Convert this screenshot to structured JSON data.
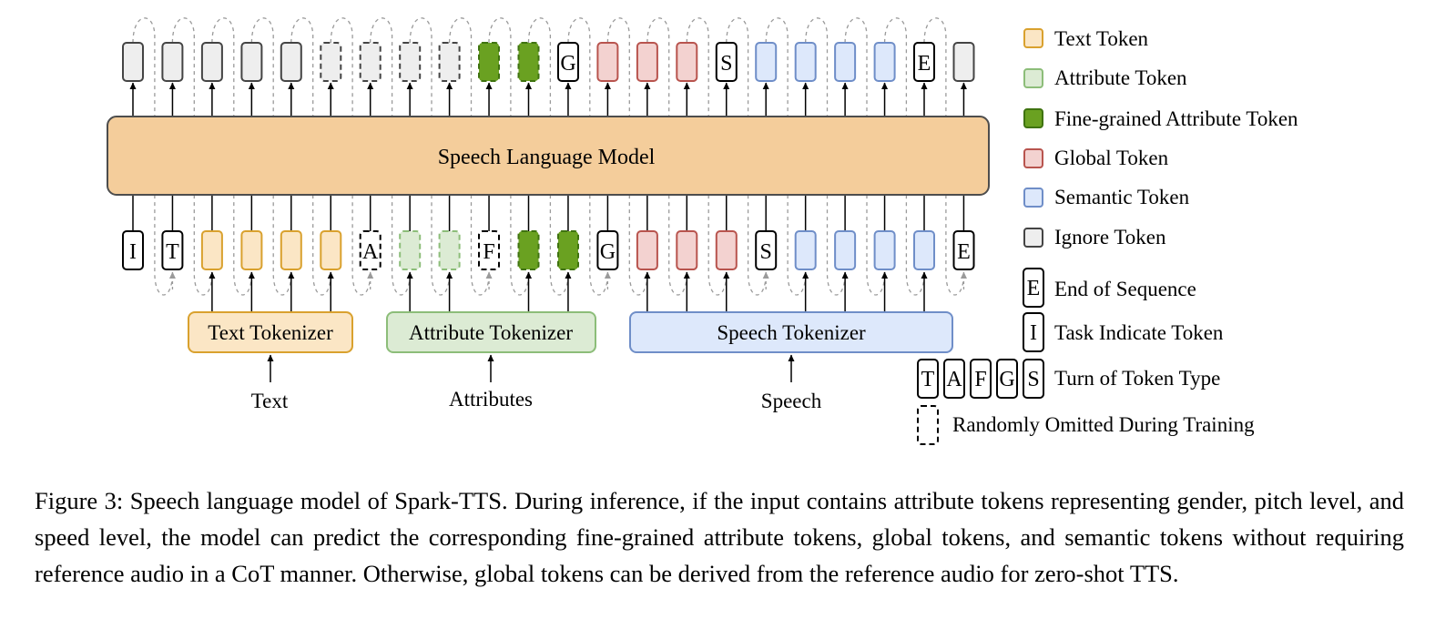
{
  "model": {
    "label": "Speech Language Model"
  },
  "tokenizers": {
    "text": "Text Tokenizer",
    "attribute": "Attribute Tokenizer",
    "speech": "Speech Tokenizer"
  },
  "inputs": {
    "text": "Text",
    "attributes": "Attributes",
    "speech": "Speech"
  },
  "token_letters": {
    "I": "I",
    "T": "T",
    "A": "A",
    "F": "F",
    "G": "G",
    "S": "S",
    "E": "E"
  },
  "token_sequence": {
    "input": [
      {
        "type": "letter",
        "letter": "I",
        "omit": false
      },
      {
        "type": "letter",
        "letter": "T",
        "omit": false
      },
      {
        "type": "text",
        "omit": false
      },
      {
        "type": "text",
        "omit": false
      },
      {
        "type": "text",
        "omit": false
      },
      {
        "type": "text",
        "omit": false
      },
      {
        "type": "letter",
        "letter": "A",
        "omit": true
      },
      {
        "type": "attribute",
        "omit": true
      },
      {
        "type": "attribute",
        "omit": true
      },
      {
        "type": "letter",
        "letter": "F",
        "omit": true
      },
      {
        "type": "fine",
        "omit": true
      },
      {
        "type": "fine",
        "omit": true
      },
      {
        "type": "letter",
        "letter": "G",
        "omit": false
      },
      {
        "type": "global",
        "omit": false
      },
      {
        "type": "global",
        "omit": false
      },
      {
        "type": "global",
        "omit": false
      },
      {
        "type": "letter",
        "letter": "S",
        "omit": false
      },
      {
        "type": "semantic",
        "omit": false
      },
      {
        "type": "semantic",
        "omit": false
      },
      {
        "type": "semantic",
        "omit": false
      },
      {
        "type": "semantic",
        "omit": false
      },
      {
        "type": "letter",
        "letter": "E",
        "omit": false
      }
    ],
    "output": [
      {
        "type": "ignore",
        "omit": false
      },
      {
        "type": "ignore",
        "omit": false
      },
      {
        "type": "ignore",
        "omit": false
      },
      {
        "type": "ignore",
        "omit": false
      },
      {
        "type": "ignore",
        "omit": false
      },
      {
        "type": "ignore",
        "omit": true
      },
      {
        "type": "ignore",
        "omit": true
      },
      {
        "type": "ignore",
        "omit": true
      },
      {
        "type": "ignore",
        "omit": true
      },
      {
        "type": "fine",
        "omit": true
      },
      {
        "type": "fine",
        "omit": true
      },
      {
        "type": "letter",
        "letter": "G",
        "omit": false
      },
      {
        "type": "global",
        "omit": false
      },
      {
        "type": "global",
        "omit": false
      },
      {
        "type": "global",
        "omit": false
      },
      {
        "type": "letter",
        "letter": "S",
        "omit": false
      },
      {
        "type": "semantic",
        "omit": false
      },
      {
        "type": "semantic",
        "omit": false
      },
      {
        "type": "semantic",
        "omit": false
      },
      {
        "type": "semantic",
        "omit": false
      },
      {
        "type": "letter",
        "letter": "E",
        "omit": false
      },
      {
        "type": "ignore",
        "omit": false
      }
    ]
  },
  "legend": {
    "text_token": "Text Token",
    "attribute_token": "Attribute Token",
    "fine_token": "Fine-grained Attribute Token",
    "global_token": "Global Token",
    "semantic_token": "Semantic Token",
    "ignore_token": "Ignore Token",
    "eos": "End of Sequence",
    "task": "Task Indicate Token",
    "turn": "Turn of Token Type",
    "omitted": "Randomly Omitted During Training"
  },
  "colors": {
    "text": {
      "fill": "#fbe6c5",
      "stroke": "#d9a12e"
    },
    "attribute": {
      "fill": "#dcebd4",
      "stroke": "#8cbd79"
    },
    "fine": {
      "fill": "#6aa121",
      "stroke": "#3f7310"
    },
    "global": {
      "fill": "#f3d2d0",
      "stroke": "#b8544e"
    },
    "semantic": {
      "fill": "#dde8fb",
      "stroke": "#6f8ec8"
    },
    "ignore": {
      "fill": "#eeeeee",
      "stroke": "#444444"
    },
    "letter": {
      "fill": "#ffffff",
      "stroke": "#000000"
    },
    "model": {
      "fill": "#f4cd9b",
      "stroke": "#4d4d4d"
    },
    "text_tok": {
      "fill": "#fbe6c5",
      "stroke": "#d9a12e"
    },
    "attr_tok": {
      "fill": "#dcebd4",
      "stroke": "#8cbd79"
    },
    "speech_tok": {
      "fill": "#dde8fb",
      "stroke": "#6f8ec8"
    }
  },
  "caption": "Figure 3: Speech language model of Spark-TTS. During inference, if the input contains attribute tokens representing gender, pitch level, and speed level, the model can predict the corresponding fine-grained attribute tokens, global tokens, and semantic tokens without requiring reference audio in a CoT manner. Otherwise, global tokens can be derived from the reference audio for zero-shot TTS."
}
